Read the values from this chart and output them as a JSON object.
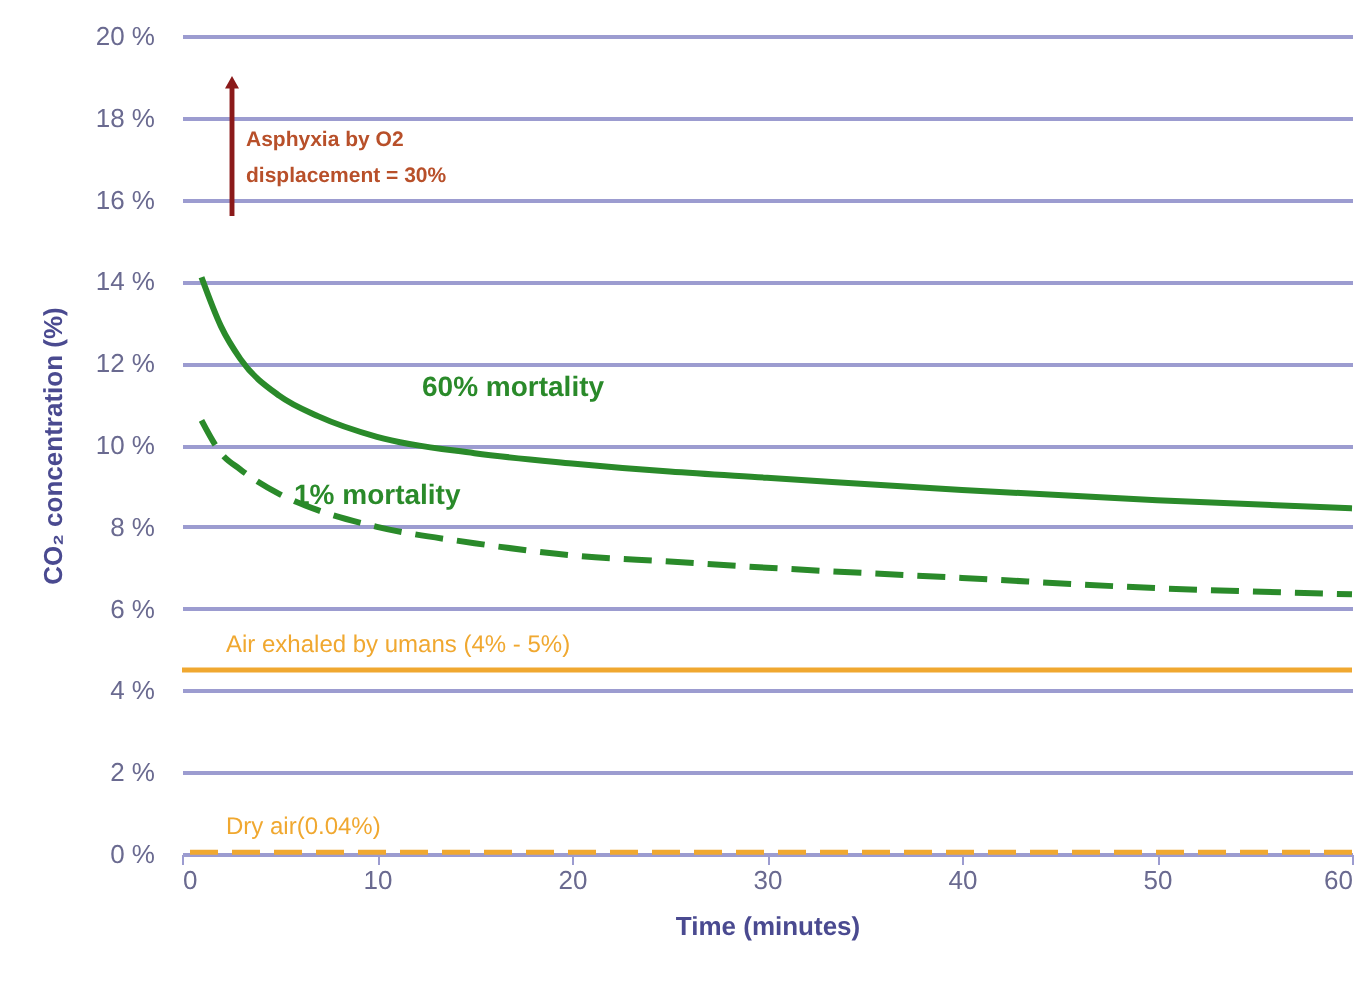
{
  "chart_data": {
    "type": "line",
    "xlabel": "Time (minutes)",
    "ylabel": "CO₂ concentration (%)",
    "xlim": [
      0,
      60
    ],
    "xticks": [
      0,
      10,
      20,
      30,
      40,
      50,
      60
    ],
    "ylim": [
      0,
      20
    ],
    "yticks": [
      {
        "value": 0,
        "label": "0 %"
      },
      {
        "value": 2,
        "label": "2 %"
      },
      {
        "value": 4,
        "label": "4 %"
      },
      {
        "value": 6,
        "label": "6 %"
      },
      {
        "value": 8,
        "label": "8 %"
      },
      {
        "value": 10,
        "label": "10 %"
      },
      {
        "value": 12,
        "label": "12 %"
      },
      {
        "value": 14,
        "label": "14 %"
      },
      {
        "value": 16,
        "label": "16 %"
      },
      {
        "value": 18,
        "label": "18 %"
      },
      {
        "value": 20,
        "label": "20 %"
      }
    ],
    "grid": "y",
    "marker": "none",
    "series": [
      {
        "name": "60% mortality",
        "color": "#2a8a2a",
        "line_style": "solid",
        "x": [
          1,
          2,
          3,
          5,
          7,
          10,
          15,
          20,
          25,
          30,
          40,
          50,
          60
        ],
        "values": [
          14.1,
          12.9,
          12.1,
          11.2,
          10.7,
          10.2,
          9.8,
          9.55,
          9.35,
          9.2,
          8.9,
          8.65,
          8.45
        ]
      },
      {
        "name": "1% mortality",
        "color": "#2a8a2a",
        "line_style": "dashed",
        "x": [
          1,
          2,
          3,
          5,
          7,
          10,
          15,
          20,
          25,
          30,
          40,
          50,
          60
        ],
        "values": [
          10.6,
          9.8,
          9.4,
          8.8,
          8.4,
          8.0,
          7.6,
          7.3,
          7.15,
          7.0,
          6.75,
          6.5,
          6.35
        ]
      }
    ],
    "ref_lines": [
      {
        "axis": "y",
        "value": 4.5,
        "label": "Air exhaled by umans (4% - 5%)",
        "color": "#f0a830",
        "line_style": "solid"
      },
      {
        "axis": "y",
        "value": 0.04,
        "label": "Dry air(0.04%)",
        "color": "#f0a830",
        "line_style": "dashed"
      }
    ],
    "annotations": [
      "Asphyxia by O2",
      "displacement = 30%"
    ]
  }
}
